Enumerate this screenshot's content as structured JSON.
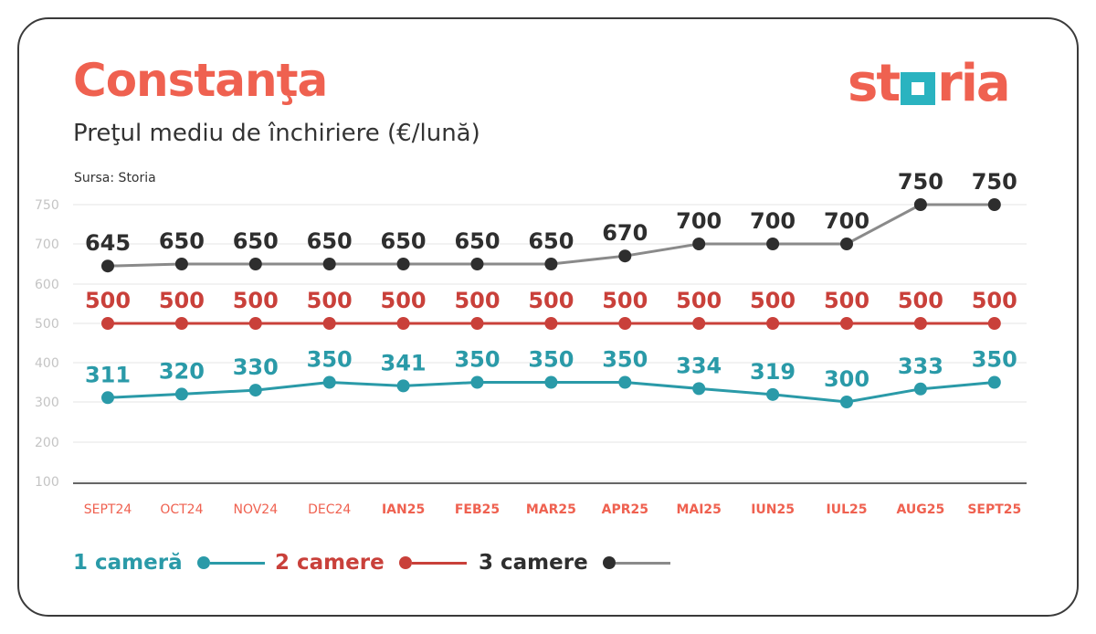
{
  "header": {
    "title": "Constanţa",
    "subtitle": "Preţul mediu de închiriere (€/lună)",
    "source": "Sursa: Storia",
    "logo_left": "st",
    "logo_right": "ria"
  },
  "colors": {
    "title": "#ef6150",
    "logo": "#ef6150",
    "logo_box": "#2ab3c0",
    "series_1": "#2a9aa8",
    "series_2": "#c9403a",
    "series_3": "#2e2e2e",
    "series_3_line": "#8a8a8a",
    "axis_ticks": "#c4c4c4",
    "x_labels": "#ef6150"
  },
  "chart_data": {
    "type": "line",
    "categories": [
      "SEPT24",
      "OCT24",
      "NOV24",
      "DEC24",
      "IAN25",
      "FEB25",
      "MAR25",
      "APR25",
      "MAI25",
      "IUN25",
      "IUL25",
      "AUG25",
      "SEPT25"
    ],
    "y_ticks": [
      "750",
      "700",
      "600",
      "500",
      "400",
      "300",
      "200",
      "100"
    ],
    "ylim": [
      100,
      750
    ],
    "grid": true,
    "legend_position": "bottom",
    "series": [
      {
        "name": "1 cameră",
        "values": [
          311,
          320,
          330,
          350,
          341,
          350,
          350,
          350,
          334,
          319,
          300,
          333,
          350
        ]
      },
      {
        "name": "2 camere",
        "values": [
          500,
          500,
          500,
          500,
          500,
          500,
          500,
          500,
          500,
          500,
          500,
          500,
          500
        ]
      },
      {
        "name": "3 camere",
        "values": [
          645,
          650,
          650,
          650,
          650,
          650,
          650,
          670,
          700,
          700,
          700,
          750,
          750
        ]
      }
    ]
  },
  "legend": {
    "items": [
      "1 cameră",
      "2 camere",
      "3 camere"
    ]
  }
}
